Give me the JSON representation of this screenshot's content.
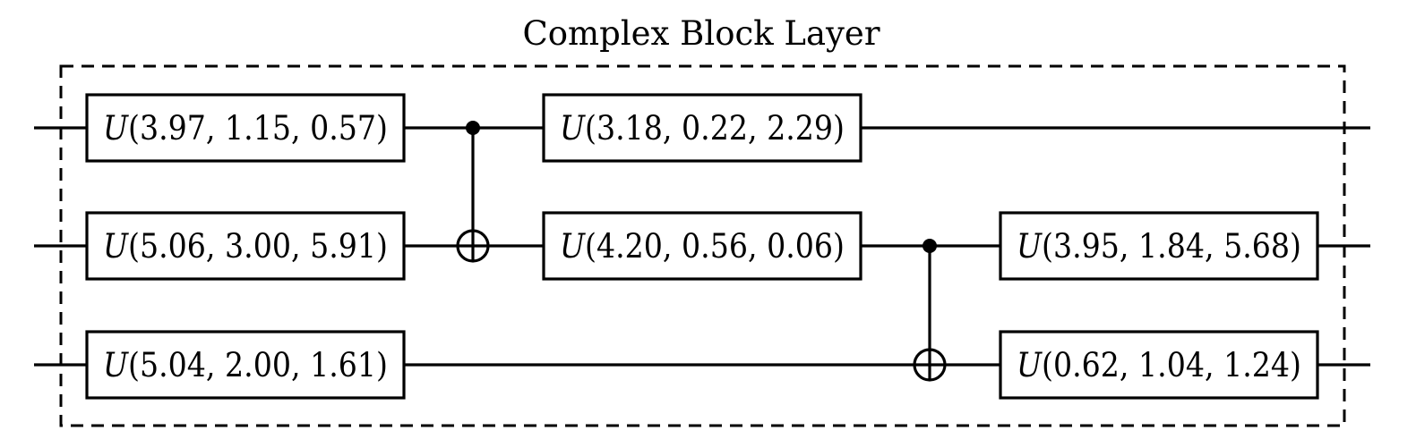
{
  "title": "Complex Block Layer",
  "gates": [
    {
      "qubit": 0,
      "column": 0,
      "symbol": "U",
      "params": "(3.97, 1.15, 0.57)"
    },
    {
      "qubit": 1,
      "column": 0,
      "symbol": "U",
      "params": "(5.06, 3.00, 5.91)"
    },
    {
      "qubit": 2,
      "column": 0,
      "symbol": "U",
      "params": "(5.04, 2.00, 1.61)"
    },
    {
      "qubit": 0,
      "column": 1,
      "symbol": "U",
      "params": "(3.18, 0.22, 2.29)"
    },
    {
      "qubit": 1,
      "column": 1,
      "symbol": "U",
      "params": "(4.20, 0.56, 0.06)"
    },
    {
      "qubit": 1,
      "column": 2,
      "symbol": "U",
      "params": "(3.95, 1.84, 5.68)"
    },
    {
      "qubit": 2,
      "column": 2,
      "symbol": "U",
      "params": "(0.62, 1.04, 1.24)"
    }
  ],
  "cnots": [
    {
      "control": 0,
      "target": 1,
      "after_column": 0
    },
    {
      "control": 1,
      "target": 2,
      "after_column": 1
    }
  ]
}
